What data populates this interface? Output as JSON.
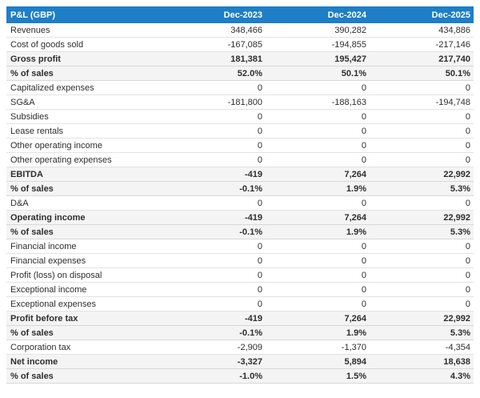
{
  "colors": {
    "header_bg": "#1e7ec6",
    "header_text": "#ffffff",
    "emphasis_row_bg": "#f4f4f4",
    "row_border": "#e3e3e3",
    "text": "#2e2e2e"
  },
  "chart_data": {
    "type": "table",
    "title": "P&L (GBP)",
    "currency": "GBP",
    "columns": [
      "Dec-2023",
      "Dec-2024",
      "Dec-2025"
    ],
    "rows": [
      {
        "label": "Revenues",
        "values": [
          "348,466",
          "390,282",
          "434,886"
        ],
        "emphasis": false
      },
      {
        "label": "Cost of goods sold",
        "values": [
          "-167,085",
          "-194,855",
          "-217,146"
        ],
        "emphasis": false
      },
      {
        "label": "Gross profit",
        "values": [
          "181,381",
          "195,427",
          "217,740"
        ],
        "emphasis": true
      },
      {
        "label": "% of sales",
        "values": [
          "52.0%",
          "50.1%",
          "50.1%"
        ],
        "emphasis": true
      },
      {
        "label": "Capitalized expenses",
        "values": [
          "0",
          "0",
          "0"
        ],
        "emphasis": false
      },
      {
        "label": "SG&A",
        "values": [
          "-181,800",
          "-188,163",
          "-194,748"
        ],
        "emphasis": false
      },
      {
        "label": "Subsidies",
        "values": [
          "0",
          "0",
          "0"
        ],
        "emphasis": false
      },
      {
        "label": "Lease rentals",
        "values": [
          "0",
          "0",
          "0"
        ],
        "emphasis": false
      },
      {
        "label": "Other operating income",
        "values": [
          "0",
          "0",
          "0"
        ],
        "emphasis": false
      },
      {
        "label": "Other operating expenses",
        "values": [
          "0",
          "0",
          "0"
        ],
        "emphasis": false
      },
      {
        "label": "EBITDA",
        "values": [
          "-419",
          "7,264",
          "22,992"
        ],
        "emphasis": true
      },
      {
        "label": "% of sales",
        "values": [
          "-0.1%",
          "1.9%",
          "5.3%"
        ],
        "emphasis": true
      },
      {
        "label": "D&A",
        "values": [
          "0",
          "0",
          "0"
        ],
        "emphasis": false
      },
      {
        "label": "Operating income",
        "values": [
          "-419",
          "7,264",
          "22,992"
        ],
        "emphasis": true
      },
      {
        "label": "% of sales",
        "values": [
          "-0.1%",
          "1.9%",
          "5.3%"
        ],
        "emphasis": true
      },
      {
        "label": "Financial income",
        "values": [
          "0",
          "0",
          "0"
        ],
        "emphasis": false
      },
      {
        "label": "Financial expenses",
        "values": [
          "0",
          "0",
          "0"
        ],
        "emphasis": false
      },
      {
        "label": "Profit (loss) on disposal",
        "values": [
          "0",
          "0",
          "0"
        ],
        "emphasis": false
      },
      {
        "label": "Exceptional income",
        "values": [
          "0",
          "0",
          "0"
        ],
        "emphasis": false
      },
      {
        "label": "Exceptional expenses",
        "values": [
          "0",
          "0",
          "0"
        ],
        "emphasis": false
      },
      {
        "label": "Profit before tax",
        "values": [
          "-419",
          "7,264",
          "22,992"
        ],
        "emphasis": true
      },
      {
        "label": "% of sales",
        "values": [
          "-0.1%",
          "1.9%",
          "5.3%"
        ],
        "emphasis": true
      },
      {
        "label": "Corporation tax",
        "values": [
          "-2,909",
          "-1,370",
          "-4,354"
        ],
        "emphasis": false
      },
      {
        "label": "Net income",
        "values": [
          "-3,327",
          "5,894",
          "18,638"
        ],
        "emphasis": true
      },
      {
        "label": "% of sales",
        "values": [
          "-1.0%",
          "1.5%",
          "4.3%"
        ],
        "emphasis": true
      }
    ]
  }
}
